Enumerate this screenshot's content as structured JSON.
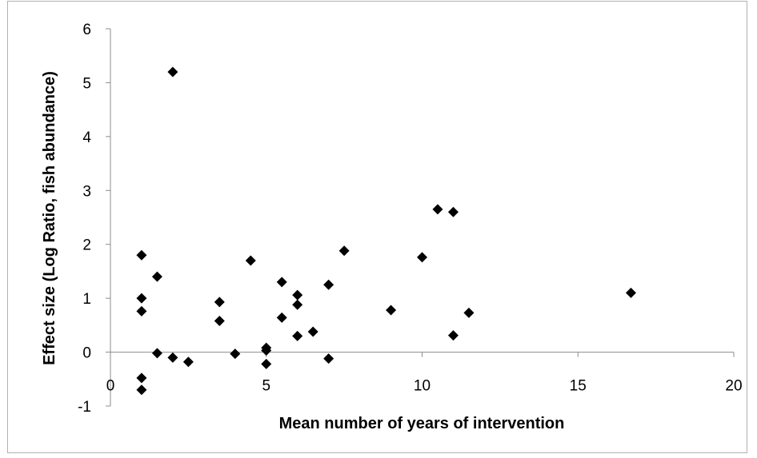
{
  "chart_data": {
    "type": "scatter",
    "title": "",
    "xlabel": "Mean number of years of intervention",
    "ylabel": "Effect size (Log Ratio, fish abundance)",
    "xlim": [
      0,
      20
    ],
    "ylim": [
      -1,
      6
    ],
    "x_ticks": [
      0,
      5,
      10,
      15,
      20
    ],
    "y_ticks": [
      -1,
      0,
      1,
      2,
      3,
      4,
      5,
      6
    ],
    "x_tick_labels": [
      "0",
      "5",
      "10",
      "15",
      "20"
    ],
    "y_tick_labels": [
      "-1",
      "0",
      "1",
      "2",
      "3",
      "4",
      "5",
      "6"
    ],
    "grid": false,
    "legend": "none",
    "marker": "diamond",
    "marker_color": "#000000",
    "series": [
      {
        "points": [
          [
            1,
            1.8
          ],
          [
            1,
            1.0
          ],
          [
            1,
            0.76
          ],
          [
            1,
            -0.48
          ],
          [
            1,
            -0.7
          ],
          [
            1.5,
            1.4
          ],
          [
            1.5,
            -0.02
          ],
          [
            2,
            5.2
          ],
          [
            2,
            -0.1
          ],
          [
            2.5,
            -0.18
          ],
          [
            3.5,
            0.93
          ],
          [
            3.5,
            0.58
          ],
          [
            4,
            -0.03
          ],
          [
            4.5,
            1.7
          ],
          [
            5,
            0.08
          ],
          [
            5,
            0.03
          ],
          [
            5,
            -0.22
          ],
          [
            5.5,
            1.3
          ],
          [
            5.5,
            0.64
          ],
          [
            6,
            1.06
          ],
          [
            6,
            0.88
          ],
          [
            6,
            0.3
          ],
          [
            6.5,
            0.38
          ],
          [
            7,
            1.25
          ],
          [
            7,
            -0.12
          ],
          [
            7.5,
            1.88
          ],
          [
            9,
            0.78
          ],
          [
            10,
            1.76
          ],
          [
            10.5,
            2.65
          ],
          [
            11,
            2.6
          ],
          [
            11,
            0.31
          ],
          [
            11.5,
            0.73
          ],
          [
            16.7,
            1.1
          ]
        ]
      }
    ]
  }
}
